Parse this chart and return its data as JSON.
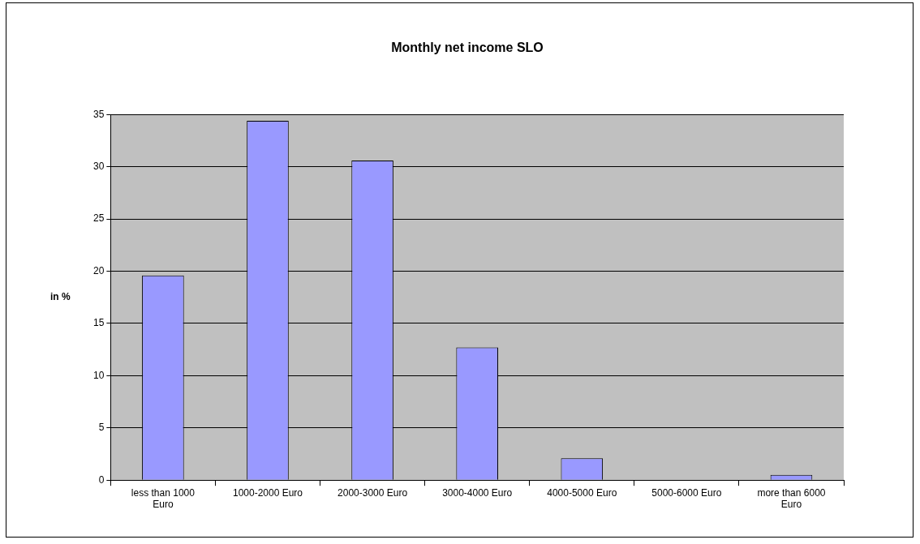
{
  "chart_data": {
    "type": "bar",
    "title": "Monthly net income SLO",
    "ylabel": "in %",
    "categories": [
      "less than 1000 Euro",
      "1000-2000 Euro",
      "2000-3000 Euro",
      "3000-4000 Euro",
      "4000-5000 Euro",
      "5000-6000 Euro",
      "more than 6000 Euro"
    ],
    "values": [
      19.6,
      34.4,
      30.6,
      12.7,
      2.1,
      0,
      0.5
    ],
    "color": "#9999ff",
    "ylim": [
      0,
      35
    ],
    "yticks": [
      0,
      5,
      10,
      15,
      20,
      25,
      30,
      35
    ],
    "grid": "y",
    "legend": false
  }
}
